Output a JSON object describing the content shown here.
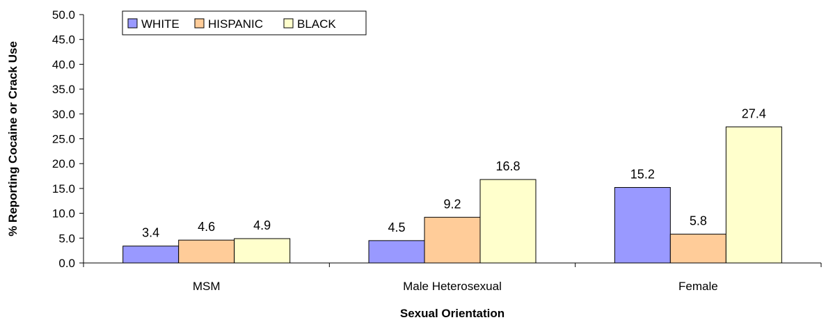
{
  "chart_data": {
    "type": "bar",
    "title": "",
    "xlabel": "Sexual Orientation",
    "ylabel": "% Reporting Cocaine or Crack Use",
    "categories": [
      "MSM",
      "Male Heterosexual",
      "Female"
    ],
    "series": [
      {
        "name": "WHITE",
        "color": "#9999ff",
        "values": [
          3.4,
          4.5,
          15.2
        ]
      },
      {
        "name": "HISPANIC",
        "color": "#ffcc99",
        "values": [
          4.6,
          9.2,
          5.8
        ]
      },
      {
        "name": "BLACK",
        "color": "#ffffcc",
        "values": [
          4.9,
          16.8,
          27.4
        ]
      }
    ],
    "ylim": [
      0,
      50
    ],
    "yticks": [
      "0.0",
      "5.0",
      "10.0",
      "15.0",
      "20.0",
      "25.0",
      "30.0",
      "35.0",
      "40.0",
      "45.0",
      "50.0"
    ],
    "ytick_values": [
      0,
      5,
      10,
      15,
      20,
      25,
      30,
      35,
      40,
      45,
      50
    ],
    "grid": false,
    "legend_position": "top-left"
  }
}
